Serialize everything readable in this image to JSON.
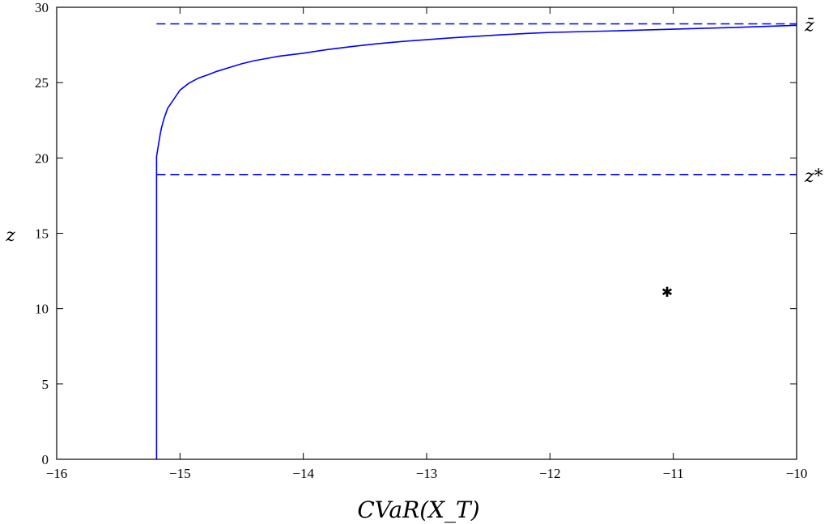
{
  "chart_data": {
    "type": "line",
    "title": "",
    "xlabel": "CVaR(X_T)",
    "ylabel": "z",
    "xlim": [
      -16,
      -10
    ],
    "ylim": [
      0,
      30
    ],
    "xticks": [
      -16,
      -15,
      -14,
      -13,
      -12,
      -11,
      -10
    ],
    "yticks": [
      0,
      5,
      10,
      15,
      20,
      25,
      30
    ],
    "xtick_labels": [
      "−16",
      "−15",
      "−14",
      "−13",
      "−12",
      "−11",
      "−10"
    ],
    "ytick_labels": [
      "0",
      "5",
      "10",
      "15",
      "20",
      "25",
      "30"
    ],
    "grid": false,
    "colors": {
      "series": "#0000ff",
      "marker": "#000000",
      "axes": "#000000"
    },
    "series": [
      {
        "style": "solid",
        "x": [
          -15.19,
          -15.19,
          -15.18,
          -15.17,
          -15.16,
          -15.15,
          -15.13,
          -15.1,
          -15.05,
          -15.0,
          -14.93,
          -14.85,
          -14.78,
          -14.7,
          -14.6,
          -14.5,
          -14.4,
          -14.3,
          -14.2,
          -14.1,
          -14.0,
          -13.8,
          -13.6,
          -13.4,
          -13.2,
          -13.0,
          -12.8,
          -12.6,
          -12.4,
          -12.2,
          -12.0,
          -11.5,
          -11.0,
          -10.5,
          -10.0
        ],
        "y": [
          0,
          20.1,
          20.6,
          21.1,
          21.6,
          22.0,
          22.6,
          23.3,
          23.9,
          24.5,
          24.95,
          25.3,
          25.5,
          25.75,
          26.0,
          26.25,
          26.45,
          26.6,
          26.75,
          26.85,
          26.95,
          27.2,
          27.4,
          27.58,
          27.73,
          27.85,
          27.97,
          28.07,
          28.17,
          28.26,
          28.33,
          28.43,
          28.55,
          28.66,
          28.8
        ]
      },
      {
        "style": "dashed",
        "x": [
          -15.19,
          -10.0
        ],
        "y": [
          28.9,
          28.9
        ]
      },
      {
        "style": "dashed",
        "x": [
          -15.19,
          -10.0
        ],
        "y": [
          18.9,
          18.9
        ]
      }
    ],
    "reference_lines": [
      {
        "label": "z̄",
        "y": 28.9
      },
      {
        "label": "z*",
        "y": 18.9
      }
    ],
    "markers": [
      {
        "symbol": "✱",
        "x": -11.05,
        "y": 11.1
      }
    ]
  }
}
